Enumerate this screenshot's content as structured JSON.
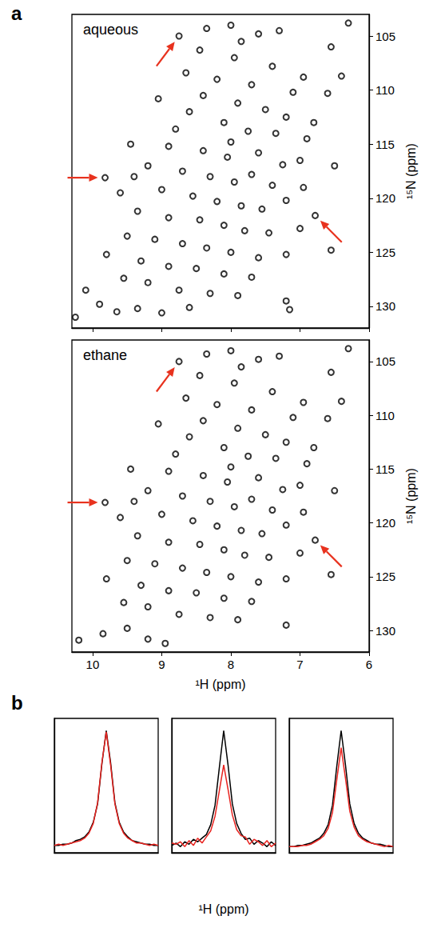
{
  "chart_data": [
    {
      "type": "scatter",
      "panel_label": "a",
      "title": "aqueous",
      "y_label": "¹⁵N (ppm)",
      "xlim": [
        6,
        10.3
      ],
      "xticks": [
        6,
        7,
        8,
        9,
        10
      ],
      "ylim": [
        103,
        132
      ],
      "yticks": [
        105,
        110,
        115,
        120,
        125,
        130
      ],
      "tick_labels": "y",
      "grid": false,
      "marker": "emptyCircle",
      "color": "#000000",
      "x": [
        8.75,
        9.82,
        6.78,
        8.35,
        8.0,
        7.85,
        7.6,
        7.3,
        6.55,
        6.3,
        8.45,
        7.95,
        7.4,
        8.65,
        8.2,
        7.7,
        7.1,
        6.6,
        6.95,
        9.05,
        8.4,
        7.9,
        7.5,
        7.2,
        6.8,
        8.6,
        8.1,
        7.75,
        7.35,
        6.9,
        9.45,
        8.9,
        8.4,
        8.05,
        7.6,
        7.0,
        6.5,
        9.2,
        8.7,
        8.3,
        7.95,
        7.7,
        7.4,
        9.6,
        9.0,
        8.55,
        8.2,
        7.85,
        7.55,
        7.2,
        6.95,
        9.35,
        8.9,
        8.45,
        8.1,
        7.8,
        7.45,
        7.0,
        6.55,
        9.5,
        9.1,
        8.7,
        8.35,
        8.0,
        7.6,
        7.2,
        9.8,
        9.3,
        8.9,
        8.5,
        8.1,
        7.7,
        9.55,
        9.2,
        8.75,
        8.3,
        7.9,
        7.2,
        9.4,
        8.0,
        7.25,
        8.8,
        6.4,
        10.1,
        9.9,
        9.65,
        10.25,
        9.35,
        9.0,
        8.6,
        7.15
      ],
      "y": [
        105.0,
        118.1,
        121.6,
        104.3,
        104.0,
        105.5,
        104.8,
        104.5,
        106.0,
        103.8,
        106.3,
        107.0,
        107.8,
        108.4,
        109.0,
        109.5,
        110.2,
        110.3,
        108.8,
        110.8,
        110.5,
        111.2,
        111.8,
        112.5,
        113.0,
        112.0,
        113.0,
        113.8,
        114.0,
        114.5,
        115.0,
        115.2,
        115.6,
        116.2,
        115.8,
        116.5,
        117.0,
        117.0,
        117.5,
        118.0,
        118.5,
        117.8,
        118.8,
        119.5,
        119.2,
        119.8,
        120.3,
        120.7,
        121.0,
        120.2,
        119.0,
        121.2,
        121.8,
        122.0,
        122.5,
        123.0,
        123.2,
        122.8,
        124.8,
        123.5,
        123.8,
        124.2,
        124.6,
        125.0,
        125.5,
        125.2,
        125.2,
        125.8,
        126.3,
        126.5,
        127.0,
        127.3,
        127.4,
        127.8,
        128.5,
        128.8,
        129.0,
        129.5,
        118.0,
        114.8,
        116.9,
        113.6,
        108.7,
        128.5,
        129.8,
        130.5,
        131.0,
        130.2,
        130.6,
        130.1,
        130.3
      ],
      "arrows": {
        "color": "#e8321e",
        "points": [
          {
            "x": 8.75,
            "y": 105.0
          },
          {
            "x": 9.82,
            "y": 118.1
          },
          {
            "x": 6.78,
            "y": 121.6
          }
        ]
      }
    },
    {
      "type": "scatter",
      "title": "ethane",
      "x_label": "¹H (ppm)",
      "y_label": "¹⁵N (ppm)",
      "xlim": [
        6,
        10.3
      ],
      "xticks": [
        6,
        7,
        8,
        9,
        10
      ],
      "ylim": [
        103,
        132
      ],
      "yticks": [
        105,
        110,
        115,
        120,
        125,
        130
      ],
      "grid": false,
      "marker": "emptyCircle",
      "color": "#000000",
      "x": [
        8.75,
        9.82,
        6.78,
        8.35,
        8.0,
        7.85,
        7.6,
        7.3,
        6.55,
        6.3,
        8.45,
        7.95,
        7.4,
        8.65,
        8.2,
        7.7,
        7.1,
        6.6,
        6.95,
        9.05,
        8.4,
        7.9,
        7.5,
        7.2,
        6.8,
        8.6,
        8.1,
        7.75,
        7.35,
        6.9,
        9.45,
        8.9,
        8.4,
        8.05,
        7.6,
        7.0,
        6.5,
        9.2,
        8.7,
        8.3,
        7.95,
        7.7,
        7.4,
        9.6,
        9.0,
        8.55,
        8.2,
        7.85,
        7.55,
        7.2,
        6.95,
        9.35,
        8.9,
        8.45,
        8.1,
        7.8,
        7.45,
        7.0,
        6.55,
        9.5,
        9.1,
        8.7,
        8.35,
        8.0,
        7.6,
        7.2,
        9.8,
        9.3,
        8.9,
        8.5,
        8.1,
        7.7,
        9.55,
        9.2,
        8.75,
        8.3,
        7.9,
        7.2,
        9.4,
        8.0,
        7.25,
        8.8,
        6.4,
        10.2,
        9.85,
        9.5,
        9.2,
        8.95
      ],
      "y": [
        105.0,
        118.1,
        121.6,
        104.3,
        104.0,
        105.5,
        104.8,
        104.5,
        106.0,
        103.8,
        106.3,
        107.0,
        107.8,
        108.4,
        109.0,
        109.5,
        110.2,
        110.3,
        108.8,
        110.8,
        110.5,
        111.2,
        111.8,
        112.5,
        113.0,
        112.0,
        113.0,
        113.8,
        114.0,
        114.5,
        115.0,
        115.2,
        115.6,
        116.2,
        115.8,
        116.5,
        117.0,
        117.0,
        117.5,
        118.0,
        118.5,
        117.8,
        118.8,
        119.5,
        119.2,
        119.8,
        120.3,
        120.7,
        121.0,
        120.2,
        119.0,
        121.2,
        121.8,
        122.0,
        122.5,
        123.0,
        123.2,
        122.8,
        124.8,
        123.5,
        123.8,
        124.2,
        124.6,
        125.0,
        125.5,
        125.2,
        125.2,
        125.8,
        126.3,
        126.5,
        127.0,
        127.3,
        127.4,
        127.8,
        128.5,
        128.8,
        129.0,
        129.5,
        118.0,
        114.8,
        116.9,
        113.6,
        108.7,
        130.9,
        130.3,
        129.8,
        130.8,
        131.2
      ],
      "arrows": {
        "color": "#e8321e",
        "points": [
          {
            "x": 8.75,
            "y": 105.0
          },
          {
            "x": 9.82,
            "y": 118.1
          },
          {
            "x": 6.78,
            "y": 121.6
          }
        ]
      }
    },
    {
      "type": "line",
      "panel_label": "b",
      "tick_labels": false,
      "grid": false,
      "xlim": [
        9.68,
        9.92
      ],
      "ylim": [
        0,
        1.1
      ],
      "x": [
        9.68,
        9.69,
        9.7,
        9.71,
        9.72,
        9.73,
        9.74,
        9.75,
        9.76,
        9.77,
        9.78,
        9.79,
        9.8,
        9.81,
        9.82,
        9.83,
        9.84,
        9.85,
        9.86,
        9.87,
        9.88,
        9.89,
        9.9,
        9.91,
        9.92
      ],
      "series": [
        {
          "color": "#000000",
          "values": [
            0.06,
            0.06,
            0.07,
            0.07,
            0.08,
            0.09,
            0.1,
            0.13,
            0.17,
            0.25,
            0.41,
            0.74,
            1.0,
            0.73,
            0.4,
            0.25,
            0.17,
            0.13,
            0.11,
            0.1,
            0.08,
            0.07,
            0.07,
            0.06,
            0.06
          ]
        },
        {
          "color": "#e8231f",
          "values": [
            0.06,
            0.07,
            0.06,
            0.07,
            0.08,
            0.08,
            0.1,
            0.12,
            0.16,
            0.24,
            0.4,
            0.72,
            0.99,
            0.74,
            0.41,
            0.24,
            0.16,
            0.12,
            0.1,
            0.09,
            0.08,
            0.07,
            0.06,
            0.07,
            0.06
          ]
        }
      ]
    },
    {
      "type": "line",
      "x_label": "¹H (ppm)",
      "tick_labels": false,
      "grid": false,
      "xlim": [
        8.63,
        8.87
      ],
      "ylim": [
        0,
        1.1
      ],
      "x": [
        8.63,
        8.64,
        8.65,
        8.66,
        8.67,
        8.68,
        8.69,
        8.7,
        8.71,
        8.72,
        8.73,
        8.74,
        8.75,
        8.76,
        8.77,
        8.78,
        8.79,
        8.8,
        8.81,
        8.82,
        8.83,
        8.84,
        8.85,
        8.86,
        8.87
      ],
      "series": [
        {
          "color": "#000000",
          "values": [
            0.06,
            0.09,
            0.05,
            0.08,
            0.1,
            0.07,
            0.12,
            0.11,
            0.16,
            0.24,
            0.4,
            0.72,
            1.0,
            0.7,
            0.39,
            0.23,
            0.15,
            0.12,
            0.09,
            0.11,
            0.07,
            0.09,
            0.05,
            0.08,
            0.06
          ]
        },
        {
          "color": "#e8231f",
          "values": [
            0.08,
            0.05,
            0.1,
            0.06,
            0.09,
            0.11,
            0.07,
            0.13,
            0.14,
            0.19,
            0.31,
            0.52,
            0.72,
            0.51,
            0.3,
            0.18,
            0.13,
            0.08,
            0.12,
            0.06,
            0.1,
            0.05,
            0.09,
            0.07,
            0.08
          ]
        }
      ]
    },
    {
      "type": "line",
      "tick_labels": false,
      "grid": false,
      "xlim": [
        6.68,
        6.92
      ],
      "ylim": [
        0,
        1.1
      ],
      "x": [
        6.68,
        6.69,
        6.7,
        6.71,
        6.72,
        6.73,
        6.74,
        6.75,
        6.76,
        6.77,
        6.78,
        6.79,
        6.8,
        6.81,
        6.82,
        6.83,
        6.84,
        6.85,
        6.86,
        6.87,
        6.88,
        6.89,
        6.9,
        6.91,
        6.92
      ],
      "series": [
        {
          "color": "#000000",
          "values": [
            0.05,
            0.05,
            0.06,
            0.07,
            0.07,
            0.08,
            0.1,
            0.12,
            0.16,
            0.24,
            0.4,
            0.72,
            1.0,
            0.71,
            0.39,
            0.23,
            0.16,
            0.12,
            0.1,
            0.08,
            0.07,
            0.06,
            0.06,
            0.05,
            0.05
          ]
        },
        {
          "color": "#e8231f",
          "values": [
            0.05,
            0.06,
            0.05,
            0.06,
            0.07,
            0.08,
            0.09,
            0.11,
            0.14,
            0.21,
            0.34,
            0.61,
            0.86,
            0.6,
            0.33,
            0.2,
            0.14,
            0.11,
            0.09,
            0.07,
            0.06,
            0.06,
            0.05,
            0.05,
            0.05
          ]
        }
      ]
    }
  ]
}
